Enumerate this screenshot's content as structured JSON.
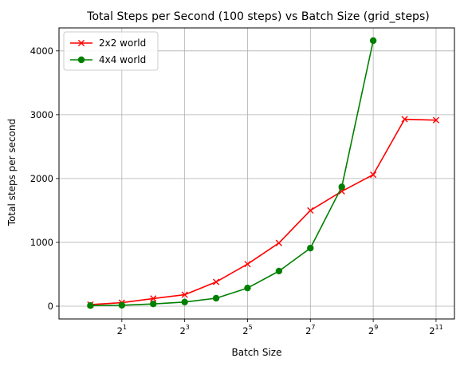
{
  "chart_data": {
    "type": "line",
    "title": "Total Steps per Second (100 steps) vs Batch Size (grid_steps)",
    "xlabel": "Batch Size",
    "ylabel": "Total steps per second",
    "x_scale": "log2",
    "x": [
      1,
      2,
      4,
      8,
      16,
      32,
      64,
      128,
      256,
      512,
      1024,
      2048
    ],
    "xlim": [
      0.5,
      3072
    ],
    "ylim": [
      -200,
      4360
    ],
    "x_ticks": [
      {
        "value": 2,
        "base": "2",
        "exp": "1"
      },
      {
        "value": 8,
        "base": "2",
        "exp": "3"
      },
      {
        "value": 32,
        "base": "2",
        "exp": "5"
      },
      {
        "value": 128,
        "base": "2",
        "exp": "7"
      },
      {
        "value": 512,
        "base": "2",
        "exp": "9"
      },
      {
        "value": 2048,
        "base": "2",
        "exp": "11"
      }
    ],
    "y_ticks": [
      {
        "value": 0,
        "label": "0"
      },
      {
        "value": 1000,
        "label": "1000"
      },
      {
        "value": 2000,
        "label": "2000"
      },
      {
        "value": 3000,
        "label": "3000"
      },
      {
        "value": 4000,
        "label": "4000"
      }
    ],
    "grid": true,
    "legend_position": "top-left",
    "series": [
      {
        "name": "2x2 world",
        "color": "#ff0000",
        "marker": "x",
        "x": [
          1,
          2,
          4,
          8,
          16,
          32,
          64,
          128,
          256,
          512,
          1024,
          2048
        ],
        "values": [
          25,
          55,
          120,
          180,
          380,
          660,
          990,
          1500,
          1800,
          2060,
          2930,
          2915
        ]
      },
      {
        "name": "4x4 world",
        "color": "#008000",
        "marker": "o",
        "x": [
          1,
          2,
          4,
          8,
          16,
          32,
          64,
          128,
          256,
          512
        ],
        "values": [
          10,
          15,
          35,
          65,
          125,
          285,
          550,
          910,
          1870,
          4160
        ]
      }
    ]
  }
}
